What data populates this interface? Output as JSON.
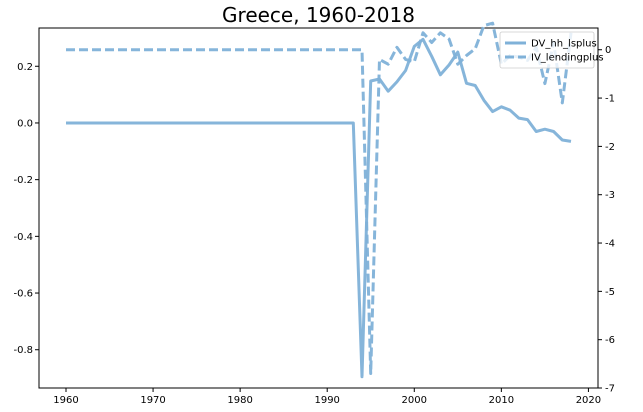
{
  "chart_data": {
    "type": "line",
    "title": "Greece, 1960-2018",
    "xlabel": "",
    "ylabel": "",
    "y2label": "",
    "xlim": [
      1956.9,
      2021.1
    ],
    "ylim": [
      -0.935,
      0.335
    ],
    "y2lim": [
      -7.0,
      0.45
    ],
    "x_ticks": [
      1960,
      1970,
      1980,
      1990,
      2000,
      2010,
      2020
    ],
    "y_ticks": [
      0.2,
      0.0,
      -0.2,
      -0.4,
      -0.6,
      -0.8
    ],
    "y2_ticks": [
      0,
      -1,
      -2,
      -3,
      -4,
      -5,
      -6,
      -7
    ],
    "legend_position": "top-right",
    "grid": false,
    "line_color": "#7fb1d8",
    "series": [
      {
        "name": "DV_hh_lsplus",
        "axis": "left",
        "style": "solid",
        "x": [
          1960,
          1961,
          1962,
          1963,
          1964,
          1965,
          1966,
          1967,
          1968,
          1969,
          1970,
          1971,
          1972,
          1973,
          1974,
          1975,
          1976,
          1977,
          1978,
          1979,
          1980,
          1981,
          1982,
          1983,
          1984,
          1985,
          1986,
          1987,
          1988,
          1989,
          1990,
          1991,
          1992,
          1993,
          1994,
          1995,
          1996,
          1997,
          1998,
          1999,
          2000,
          2001,
          2002,
          2003,
          2004,
          2005,
          2006,
          2007,
          2008,
          2009,
          2010,
          2011,
          2012,
          2013,
          2014,
          2015,
          2016,
          2017,
          2018
        ],
        "y": [
          0,
          0,
          0,
          0,
          0,
          0,
          0,
          0,
          0,
          0,
          0,
          0,
          0,
          0,
          0,
          0,
          0,
          0,
          0,
          0,
          0,
          0,
          0,
          0,
          0,
          0,
          0,
          0,
          0,
          0,
          0,
          0,
          0,
          0,
          -0.895,
          0.148,
          0.155,
          0.112,
          0.145,
          0.185,
          0.27,
          0.295,
          0.235,
          0.17,
          0.205,
          0.25,
          0.14,
          0.132,
          0.08,
          0.04,
          0.057,
          0.045,
          0.017,
          0.012,
          -0.03,
          -0.022,
          -0.03,
          -0.06,
          -0.065
        ]
      },
      {
        "name": "IV_lendingplus",
        "axis": "right",
        "style": "dashed",
        "x": [
          1960,
          1961,
          1962,
          1963,
          1964,
          1965,
          1966,
          1967,
          1968,
          1969,
          1970,
          1971,
          1972,
          1973,
          1974,
          1975,
          1976,
          1977,
          1978,
          1979,
          1980,
          1981,
          1982,
          1983,
          1984,
          1985,
          1986,
          1987,
          1988,
          1989,
          1990,
          1991,
          1992,
          1993,
          1994,
          1995,
          1996,
          1997,
          1998,
          1999,
          2000,
          2001,
          2002,
          2003,
          2004,
          2005,
          2006,
          2007,
          2008,
          2009,
          2010,
          2011,
          2012,
          2013,
          2014,
          2015,
          2016,
          2017,
          2018
        ],
        "y": [
          0,
          0,
          0,
          0,
          0,
          0,
          0,
          0,
          0,
          0,
          0,
          0,
          0,
          0,
          0,
          0,
          0,
          0,
          0,
          0,
          0,
          0,
          0,
          0,
          0,
          0,
          0,
          0,
          0,
          0,
          0,
          0,
          0,
          0,
          0,
          -6.7,
          -0.2,
          -0.3,
          0.05,
          -0.2,
          -0.25,
          0.35,
          0.15,
          0.35,
          0.22,
          -0.3,
          -0.12,
          0.02,
          0.5,
          0.55,
          -0.3,
          -0.12,
          -0.15,
          -0.22,
          0.05,
          -0.7,
          0.15,
          -1.1,
          0.35
        ]
      }
    ]
  }
}
